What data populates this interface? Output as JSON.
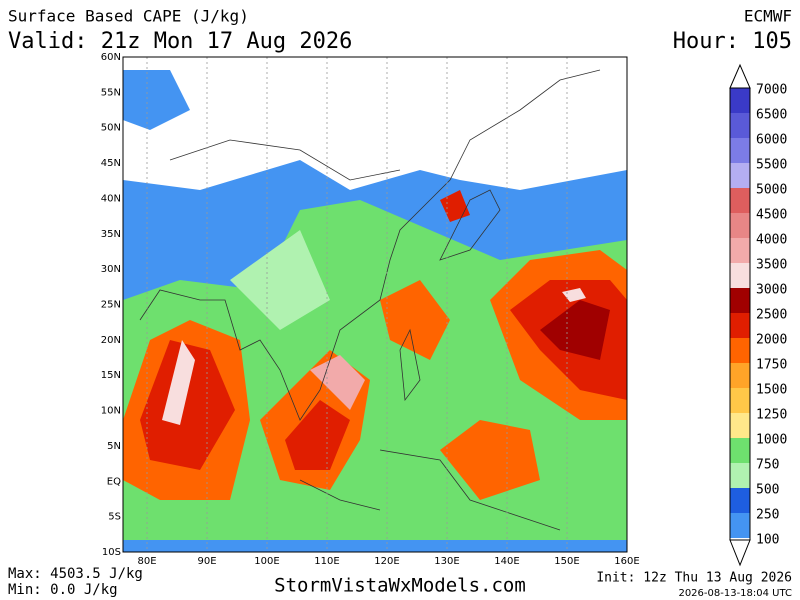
{
  "header": {
    "title": "Surface Based CAPE (J/kg)",
    "valid": "Valid: 21z Mon 17 Aug 2026",
    "model": "ECMWF",
    "hour": "Hour: 105"
  },
  "map": {
    "lat_labels": [
      "60N",
      "55N",
      "50N",
      "45N",
      "40N",
      "35N",
      "30N",
      "25N",
      "20N",
      "15N",
      "10N",
      "5N",
      "EQ",
      "5S",
      "10S"
    ],
    "lon_labels": [
      "80E",
      "90E",
      "100E",
      "110E",
      "120E",
      "130E",
      "140E",
      "150E",
      "160E"
    ]
  },
  "colorbar": {
    "levels": [
      {
        "label": "7000",
        "color": "#3a3ac8"
      },
      {
        "label": "6500",
        "color": "#5a5ad8"
      },
      {
        "label": "6000",
        "color": "#7c7ce6"
      },
      {
        "label": "5500",
        "color": "#b4aef2"
      },
      {
        "label": "5000",
        "color": "#de5e5e"
      },
      {
        "label": "4500",
        "color": "#e88686"
      },
      {
        "label": "4000",
        "color": "#f2aaaa"
      },
      {
        "label": "3500",
        "color": "#f8dede"
      },
      {
        "label": "3000",
        "color": "#a00000"
      },
      {
        "label": "2500",
        "color": "#e01e00"
      },
      {
        "label": "2000",
        "color": "#ff6400"
      },
      {
        "label": "1750",
        "color": "#ffa428"
      },
      {
        "label": "1500",
        "color": "#ffc848"
      },
      {
        "label": "1250",
        "color": "#ffe88a"
      },
      {
        "label": "1000",
        "color": "#6ee06e"
      },
      {
        "label": "750",
        "color": "#b0f2b0"
      },
      {
        "label": "500",
        "color": "#1e5ee0"
      },
      {
        "label": "250",
        "color": "#4494f2"
      },
      {
        "label": "100",
        "color": "#86c4ff"
      }
    ]
  },
  "footer": {
    "max": "Max: 4503.5 J/kg",
    "min": "Min: 0.0 J/kg",
    "site": "StormVistaWxModels.com",
    "init": "Init: 12z Thu 13 Aug 2026",
    "stamp": "2026-08-13-18:04 UTC"
  }
}
